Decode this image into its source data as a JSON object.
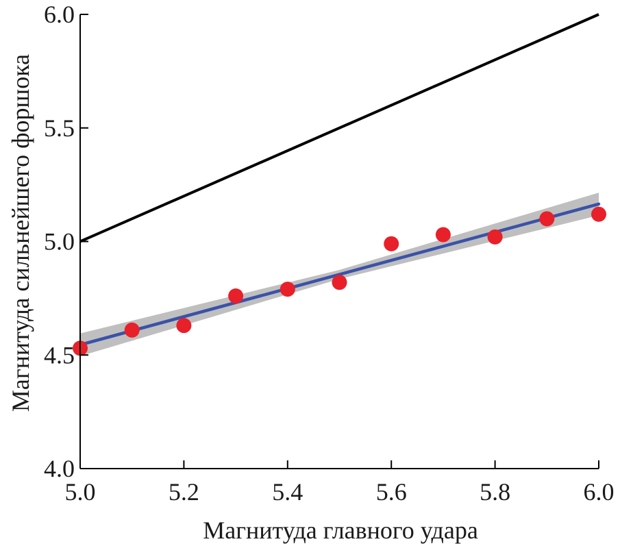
{
  "chart_data": {
    "type": "scatter",
    "title": "",
    "xlabel": "Магнитуда главного удара",
    "ylabel": "Магнитуда сильнейшего форшока",
    "xlim": [
      5.0,
      6.0
    ],
    "ylim": [
      4.0,
      6.0
    ],
    "x_ticks": [
      5.0,
      5.2,
      5.4,
      5.6,
      5.8,
      6.0
    ],
    "x_tick_labels": [
      "5.0",
      "5.2",
      "5.4",
      "5.6",
      "5.8",
      "6.0"
    ],
    "y_ticks": [
      4.0,
      4.5,
      5.0,
      5.5,
      6.0
    ],
    "y_tick_labels": [
      "4.0",
      "4.5",
      "5.0",
      "5.5",
      "6.0"
    ],
    "grid": false,
    "points": {
      "color": "#e8202a",
      "x": [
        5.0,
        5.1,
        5.2,
        5.3,
        5.4,
        5.5,
        5.6,
        5.7,
        5.8,
        5.9,
        6.0
      ],
      "y": [
        4.53,
        4.61,
        4.63,
        4.76,
        4.79,
        4.82,
        4.99,
        5.03,
        5.02,
        5.1,
        5.12
      ]
    },
    "fit_line": {
      "color": "#3a52a8",
      "x": [
        5.0,
        6.0
      ],
      "y": [
        4.545,
        5.165
      ]
    },
    "confidence_band": {
      "color": "#bfbfbf",
      "x": [
        5.0,
        5.5,
        6.0
      ],
      "lower": [
        4.495,
        4.835,
        5.115
      ],
      "upper": [
        4.595,
        4.875,
        5.215
      ]
    },
    "reference_line": {
      "color": "#000000",
      "x": [
        5.0,
        6.0
      ],
      "y": [
        5.0,
        6.0
      ]
    }
  }
}
